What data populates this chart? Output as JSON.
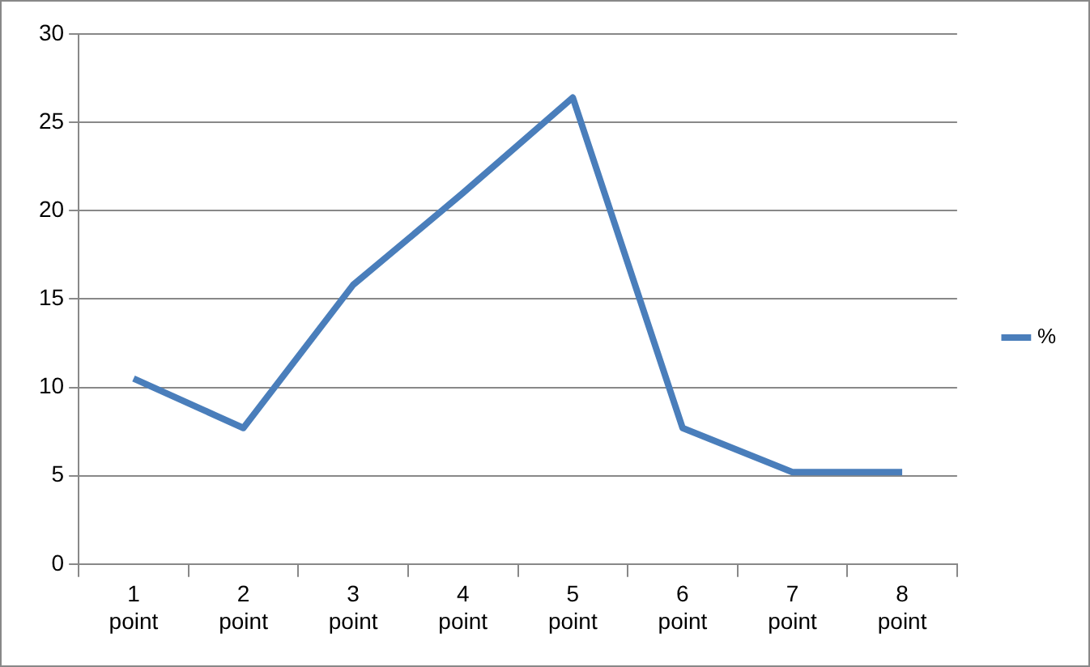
{
  "chart_data": {
    "type": "line",
    "categories": [
      "1 point",
      "2 point",
      "3 point",
      "4 point",
      "5 point",
      "6 point",
      "7 point",
      "8 point"
    ],
    "series": [
      {
        "name": "%",
        "color": "#4a7ebb",
        "values": [
          10.5,
          7.7,
          15.8,
          21,
          26.4,
          7.7,
          5.2,
          5.2
        ]
      }
    ],
    "ylim": [
      0,
      30
    ],
    "yticks": [
      0,
      5,
      10,
      15,
      20,
      25,
      30
    ],
    "grid": "y",
    "legend": "right",
    "marker": "none",
    "line_style": "solid"
  }
}
